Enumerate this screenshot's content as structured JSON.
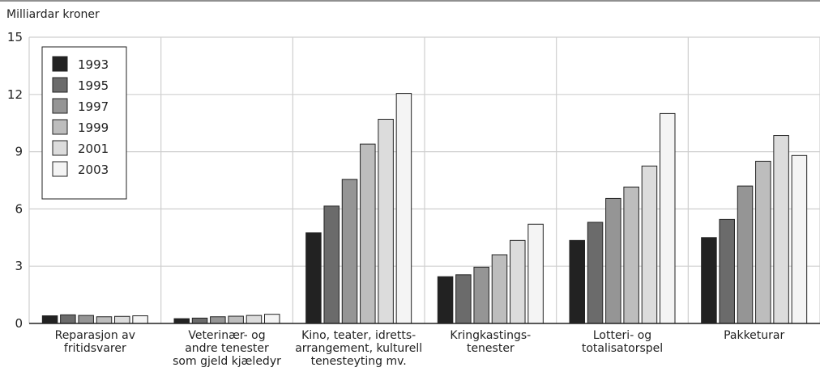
{
  "chart_data": {
    "type": "bar",
    "title": "",
    "ylabel": "Milliardar kroner",
    "ylim": [
      0,
      15
    ],
    "yticks": [
      "0",
      "3",
      "6",
      "9",
      "12",
      "15"
    ],
    "categories": [
      [
        "Reparasjon av",
        "fritidsvarer"
      ],
      [
        "Veterinær- og",
        "andre tenester",
        "som gjeld kjæledyr"
      ],
      [
        "Kino, teater,  idretts-",
        "arrangement, kulturell",
        "tenesteyting mv."
      ],
      [
        "Kringkastings-",
        "tenester"
      ],
      [
        "Lotteri- og",
        "totalisatorspel"
      ],
      [
        "Pakketurar"
      ]
    ],
    "series": [
      {
        "name": "1993",
        "color": "#222222",
        "values": [
          0.4,
          0.25,
          4.75,
          2.45,
          4.35,
          4.5
        ]
      },
      {
        "name": "1995",
        "color": "#6b6b6b",
        "values": [
          0.45,
          0.28,
          6.15,
          2.55,
          5.3,
          5.45
        ]
      },
      {
        "name": "1997",
        "color": "#959595",
        "values": [
          0.42,
          0.35,
          7.55,
          2.95,
          6.55,
          7.2
        ]
      },
      {
        "name": "1999",
        "color": "#bdbdbd",
        "values": [
          0.35,
          0.38,
          9.4,
          3.6,
          7.15,
          8.5
        ]
      },
      {
        "name": "2001",
        "color": "#dcdcdc",
        "values": [
          0.37,
          0.42,
          10.7,
          4.35,
          8.25,
          9.85
        ]
      },
      {
        "name": "2003",
        "color": "#f4f4f4",
        "values": [
          0.4,
          0.48,
          12.05,
          5.2,
          11.0,
          8.8
        ]
      }
    ],
    "legend": "top-left",
    "grid": true
  }
}
